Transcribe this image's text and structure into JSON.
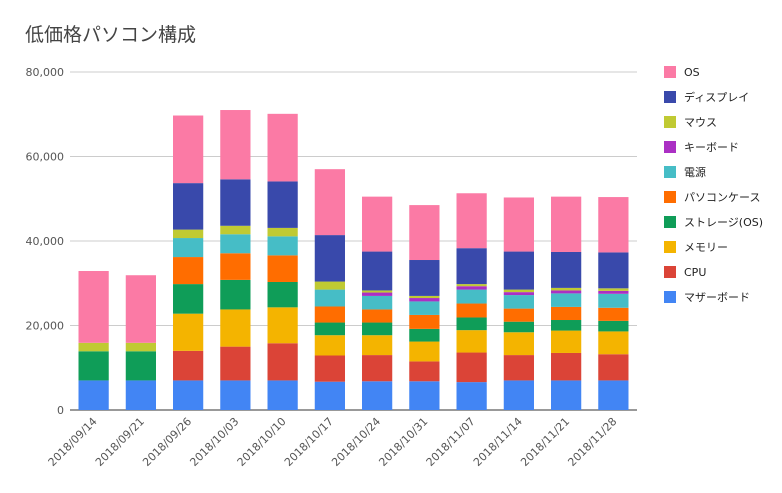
{
  "chart_data": {
    "type": "bar",
    "stacked": true,
    "title": "低価格パソコン構成",
    "xlabel": "",
    "ylabel": "",
    "ylim": [
      0,
      80000
    ],
    "yticks": [
      0,
      20000,
      40000,
      60000,
      80000
    ],
    "ytick_labels": [
      "0",
      "20,000",
      "40,000",
      "60,000",
      "80,000"
    ],
    "grid": true,
    "legend_position": "right",
    "categories": [
      "2018/09/14",
      "2018/09/21",
      "2018/09/26",
      "2018/10/03",
      "2018/10/10",
      "2018/10/17",
      "2018/10/24",
      "2018/10/31",
      "2018/11/07",
      "2018/11/14",
      "2018/11/21",
      "2018/11/28"
    ],
    "series": [
      {
        "name": "マザーボード",
        "color": "#4285f4",
        "values": [
          7000,
          7000,
          7000,
          7000,
          7000,
          6700,
          6800,
          6800,
          6600,
          7000,
          7000,
          7000
        ]
      },
      {
        "name": "CPU",
        "color": "#db4437",
        "values": [
          0,
          0,
          7000,
          8000,
          8800,
          6200,
          6200,
          4700,
          7000,
          6000,
          6500,
          6200
        ]
      },
      {
        "name": "メモリー",
        "color": "#f4b400",
        "values": [
          0,
          0,
          8800,
          8800,
          8500,
          4800,
          4700,
          4700,
          5300,
          5400,
          5300,
          5400
        ]
      },
      {
        "name": "ストレージ(OS)",
        "color": "#0f9d58",
        "values": [
          6900,
          6900,
          7000,
          7000,
          6000,
          3000,
          3000,
          3000,
          3000,
          2500,
          2500,
          2500
        ]
      },
      {
        "name": "パソコンケース",
        "color": "#ff6d00",
        "values": [
          0,
          0,
          6400,
          6300,
          6300,
          3800,
          3100,
          3300,
          3300,
          3100,
          3100,
          3100
        ]
      },
      {
        "name": "電源",
        "color": "#46bdc6",
        "values": [
          0,
          0,
          4500,
          4500,
          4500,
          4000,
          3200,
          3200,
          3300,
          3200,
          3200,
          3300
        ]
      },
      {
        "name": "キーボード",
        "color": "#ab30c4",
        "values": [
          0,
          0,
          0,
          0,
          0,
          0,
          800,
          800,
          800,
          700,
          700,
          700
        ]
      },
      {
        "name": "マウス",
        "color": "#c0ca33",
        "values": [
          2000,
          2000,
          2000,
          2000,
          2000,
          1900,
          500,
          500,
          500,
          600,
          600,
          600
        ]
      },
      {
        "name": "ディスプレイ",
        "color": "#3949ab",
        "values": [
          0,
          0,
          11000,
          11000,
          11000,
          11000,
          9200,
          8500,
          8500,
          9000,
          8500,
          8500
        ]
      },
      {
        "name": "OS",
        "color": "#fb7aa5",
        "values": [
          17000,
          16000,
          16000,
          16400,
          16000,
          15600,
          13000,
          13000,
          13000,
          12800,
          13100,
          13100
        ]
      }
    ]
  }
}
